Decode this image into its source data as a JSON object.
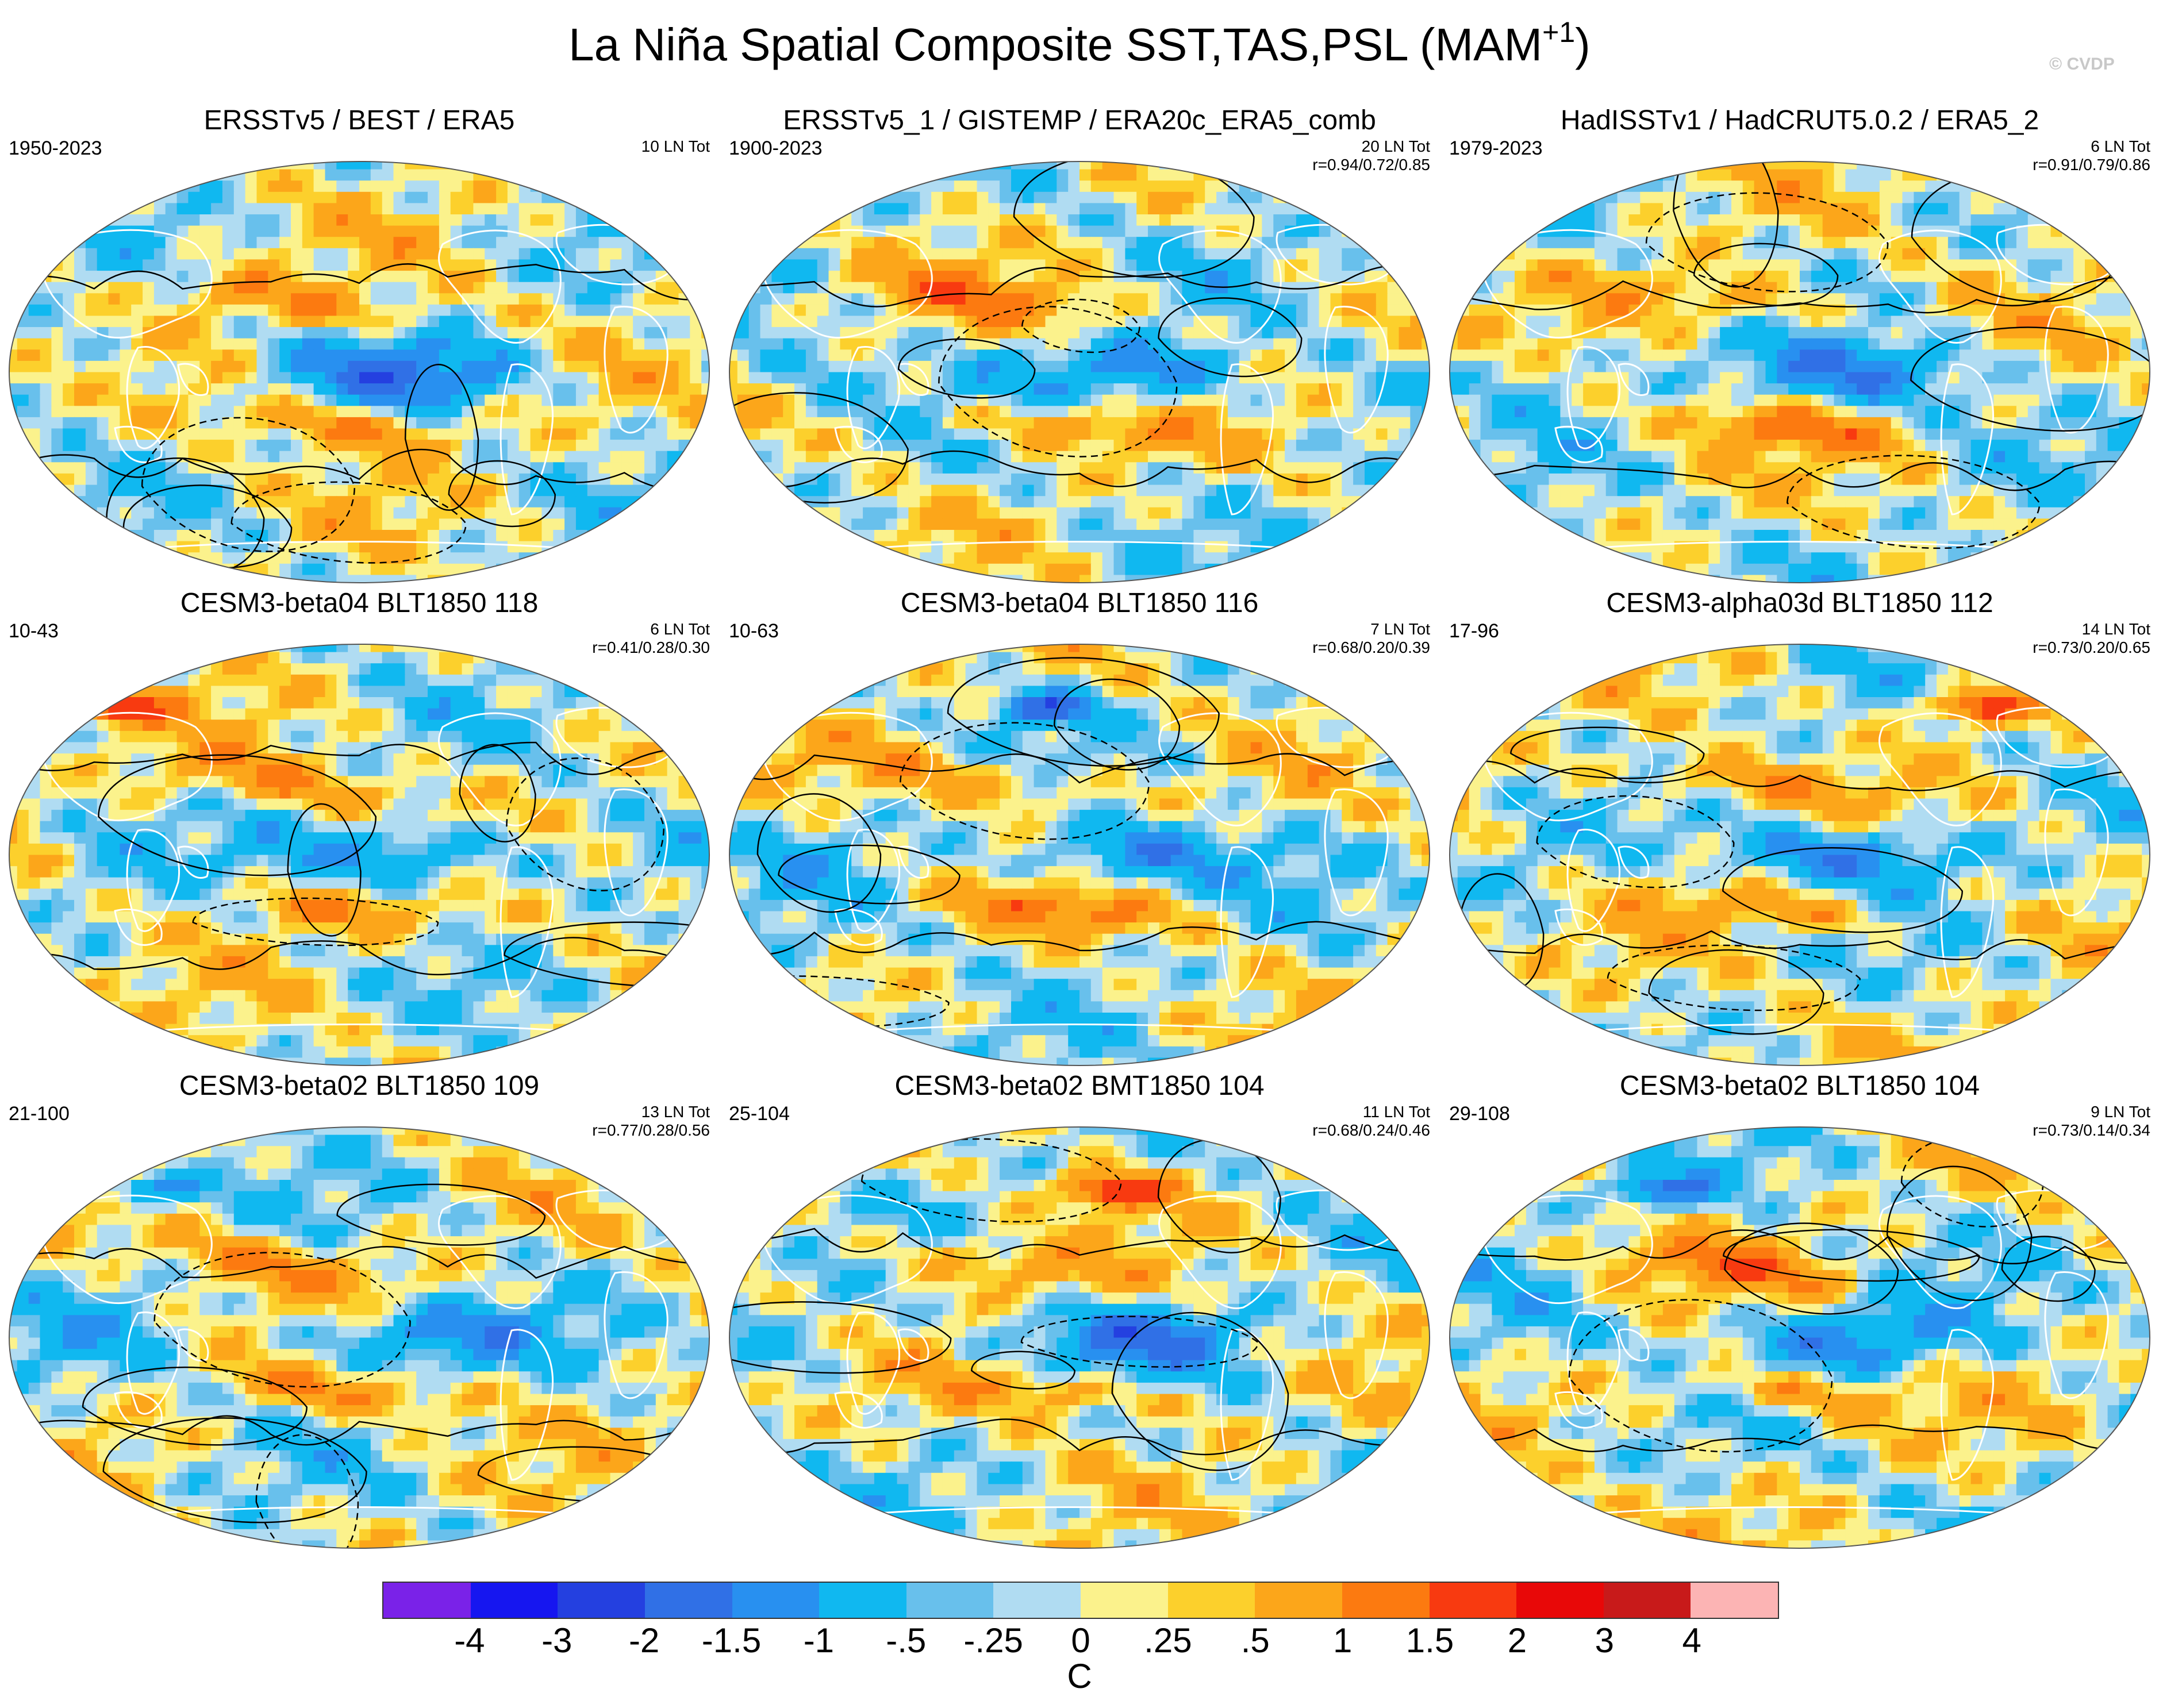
{
  "title_main": "La Niña Spatial Composite SST,TAS,PSL (MAM",
  "title_sup": "+1",
  "title_close": ")",
  "copyright": "© CVDP",
  "colors": {
    "land_outline": "#ffffff",
    "psl_contour": "#000000"
  },
  "chart_data": {
    "type": "heatmap",
    "description_type": "spatial composite maps (Robinson projection), 3x3 panels",
    "variables": [
      "SST",
      "TAS",
      "PSL"
    ],
    "season": "MAM+1",
    "panels": [
      {
        "title": "ERSSTv5 / BEST / ERA5",
        "years": "1950-2023",
        "count": "10 LN Tot",
        "stats": "",
        "pattern": 0
      },
      {
        "title": "ERSSTv5_1 / GISTEMP / ERA20c_ERA5_comb",
        "years": "1900-2023",
        "count": "20 LN Tot",
        "stats": "r=0.94/0.72/0.85",
        "pattern": 1
      },
      {
        "title": "HadISSTv1 / HadCRUT5.0.2 / ERA5_2",
        "years": "1979-2023",
        "count": "6 LN Tot",
        "stats": "r=0.91/0.79/0.86",
        "pattern": 2
      },
      {
        "title": "CESM3-beta04 BLT1850 118",
        "years": "10-43",
        "count": "6 LN Tot",
        "stats": "r=0.41/0.28/0.30",
        "pattern": 3
      },
      {
        "title": "CESM3-beta04 BLT1850 116",
        "years": "10-63",
        "count": "7 LN Tot",
        "stats": "r=0.68/0.20/0.39",
        "pattern": 4
      },
      {
        "title": "CESM3-alpha03d BLT1850 112",
        "years": "17-96",
        "count": "14 LN Tot",
        "stats": "r=0.73/0.20/0.65",
        "pattern": 5
      },
      {
        "title": "CESM3-beta02 BLT1850 109",
        "years": "21-100",
        "count": "13 LN Tot",
        "stats": "r=0.77/0.28/0.56",
        "pattern": 6
      },
      {
        "title": "CESM3-beta02 BMT1850 104",
        "years": "25-104",
        "count": "11 LN Tot",
        "stats": "r=0.68/0.24/0.46",
        "pattern": 7
      },
      {
        "title": "CESM3-beta02 BLT1850 104",
        "years": "29-108",
        "count": "9 LN Tot",
        "stats": "r=0.73/0.14/0.34",
        "pattern": 8
      }
    ],
    "colorbar": {
      "levels": [
        "-4",
        "-3",
        "-2",
        "-1.5",
        "-1",
        "-.5",
        "-.25",
        "0",
        ".25",
        ".5",
        "1",
        "1.5",
        "2",
        "3",
        "4"
      ],
      "colors": [
        "#7a22e8",
        "#1616f0",
        "#2440e0",
        "#3070e6",
        "#2890f0",
        "#10b8f0",
        "#68c0ec",
        "#b0dcf2",
        "#fbf28c",
        "#fcd02c",
        "#fca61a",
        "#fc7a10",
        "#f83a10",
        "#e80808",
        "#c81a1a",
        "#fcb4b4"
      ],
      "unit": "C"
    }
  }
}
